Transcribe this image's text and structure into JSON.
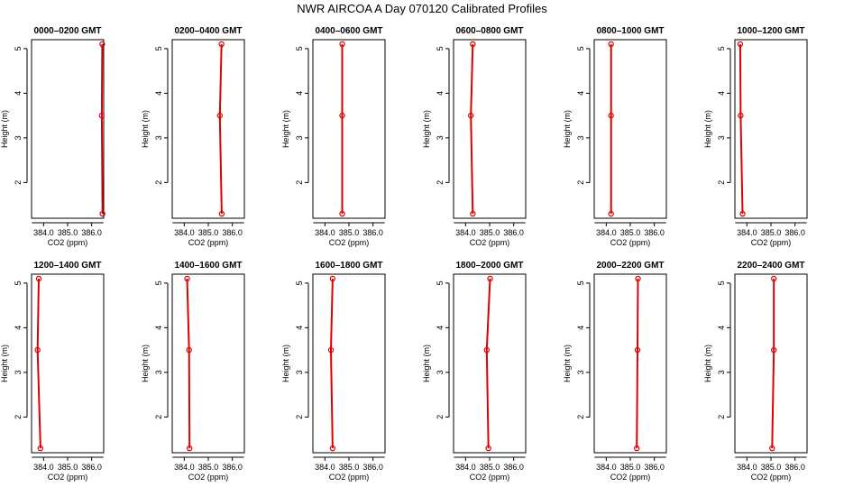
{
  "title": "NWR AIRCOA A  Day 070120  Calibrated Profiles",
  "colors": {
    "series": "#dd0000",
    "axis": "#000000"
  },
  "chart_data": [
    {
      "type": "line",
      "title": "0000–0200 GMT",
      "xlabel": "CO2 (ppm)",
      "ylabel": "Height (m)",
      "xlim": [
        383.5,
        386.5
      ],
      "ylim": [
        1.2,
        5.2
      ],
      "xticks": [
        "384.0",
        "385.0",
        "386.0"
      ],
      "yticks": [
        "2",
        "3",
        "4",
        "5"
      ],
      "grid": false,
      "series": [
        {
          "x": [
            386.44,
            386.42,
            386.45
          ],
          "y": [
            5.1,
            3.5,
            1.3
          ]
        }
      ]
    },
    {
      "type": "line",
      "title": "0200–0400 GMT",
      "xlabel": "CO2 (ppm)",
      "ylabel": "Height (m)",
      "xlim": [
        383.5,
        386.5
      ],
      "ylim": [
        1.2,
        5.2
      ],
      "xticks": [
        "384.0",
        "385.0",
        "386.0"
      ],
      "yticks": [
        "2",
        "3",
        "4",
        "5"
      ],
      "grid": false,
      "series": [
        {
          "x": [
            385.55,
            385.48,
            385.56
          ],
          "y": [
            5.1,
            3.5,
            1.3
          ]
        }
      ]
    },
    {
      "type": "line",
      "title": "0400–0600 GMT",
      "xlabel": "CO2 (ppm)",
      "ylabel": "Height (m)",
      "xlim": [
        383.5,
        386.5
      ],
      "ylim": [
        1.2,
        5.2
      ],
      "xticks": [
        "384.0",
        "385.0",
        "386.0"
      ],
      "yticks": [
        "2",
        "3",
        "4",
        "5"
      ],
      "grid": false,
      "series": [
        {
          "x": [
            384.72,
            384.72,
            384.72
          ],
          "y": [
            5.1,
            3.5,
            1.3
          ]
        }
      ]
    },
    {
      "type": "line",
      "title": "0600–0800 GMT",
      "xlabel": "CO2 (ppm)",
      "ylabel": "Height (m)",
      "xlim": [
        383.5,
        386.5
      ],
      "ylim": [
        1.2,
        5.2
      ],
      "xticks": [
        "384.0",
        "385.0",
        "386.0"
      ],
      "yticks": [
        "2",
        "3",
        "4",
        "5"
      ],
      "grid": false,
      "series": [
        {
          "x": [
            384.3,
            384.22,
            384.3
          ],
          "y": [
            5.1,
            3.5,
            1.3
          ]
        }
      ]
    },
    {
      "type": "line",
      "title": "0800–1000 GMT",
      "xlabel": "CO2 (ppm)",
      "ylabel": "Height (m)",
      "xlim": [
        383.5,
        386.5
      ],
      "ylim": [
        1.2,
        5.2
      ],
      "xticks": [
        "384.0",
        "385.0",
        "386.0"
      ],
      "yticks": [
        "2",
        "3",
        "4",
        "5"
      ],
      "grid": false,
      "series": [
        {
          "x": [
            384.2,
            384.2,
            384.2
          ],
          "y": [
            5.1,
            3.5,
            1.3
          ]
        }
      ]
    },
    {
      "type": "line",
      "title": "1000–1200 GMT",
      "xlabel": "CO2 (ppm)",
      "ylabel": "Height (m)",
      "xlim": [
        383.5,
        386.5
      ],
      "ylim": [
        1.2,
        5.2
      ],
      "xticks": [
        "384.0",
        "385.0",
        "386.0"
      ],
      "yticks": [
        "2",
        "3",
        "4",
        "5"
      ],
      "grid": false,
      "series": [
        {
          "x": [
            383.72,
            383.74,
            383.82
          ],
          "y": [
            5.1,
            3.5,
            1.3
          ]
        }
      ]
    },
    {
      "type": "line",
      "title": "1200–1400 GMT",
      "xlabel": "CO2 (ppm)",
      "ylabel": "Height (m)",
      "xlim": [
        383.5,
        386.5
      ],
      "ylim": [
        1.2,
        5.2
      ],
      "xticks": [
        "384.0",
        "385.0",
        "386.0"
      ],
      "yticks": [
        "2",
        "3",
        "4",
        "5"
      ],
      "grid": false,
      "series": [
        {
          "x": [
            383.8,
            383.75,
            383.87
          ],
          "y": [
            5.1,
            3.5,
            1.3
          ]
        }
      ]
    },
    {
      "type": "line",
      "title": "1400–1600 GMT",
      "xlabel": "CO2 (ppm)",
      "ylabel": "Height (m)",
      "xlim": [
        383.5,
        386.5
      ],
      "ylim": [
        1.2,
        5.2
      ],
      "xticks": [
        "384.0",
        "385.0",
        "386.0"
      ],
      "yticks": [
        "2",
        "3",
        "4",
        "5"
      ],
      "grid": false,
      "series": [
        {
          "x": [
            384.12,
            384.2,
            384.22
          ],
          "y": [
            5.1,
            3.5,
            1.3
          ]
        }
      ]
    },
    {
      "type": "line",
      "title": "1600–1800 GMT",
      "xlabel": "CO2 (ppm)",
      "ylabel": "Height (m)",
      "xlim": [
        383.5,
        386.5
      ],
      "ylim": [
        1.2,
        5.2
      ],
      "xticks": [
        "384.0",
        "385.0",
        "386.0"
      ],
      "yticks": [
        "2",
        "3",
        "4",
        "5"
      ],
      "grid": false,
      "series": [
        {
          "x": [
            384.32,
            384.25,
            384.32
          ],
          "y": [
            5.1,
            3.5,
            1.3
          ]
        }
      ]
    },
    {
      "type": "line",
      "title": "1800–2000 GMT",
      "xlabel": "CO2 (ppm)",
      "ylabel": "Height (m)",
      "xlim": [
        383.5,
        386.5
      ],
      "ylim": [
        1.2,
        5.2
      ],
      "xticks": [
        "384.0",
        "385.0",
        "386.0"
      ],
      "yticks": [
        "2",
        "3",
        "4",
        "5"
      ],
      "grid": false,
      "series": [
        {
          "x": [
            385.02,
            384.88,
            384.95
          ],
          "y": [
            5.1,
            3.5,
            1.3
          ]
        }
      ]
    },
    {
      "type": "line",
      "title": "2000–2200 GMT",
      "xlabel": "CO2 (ppm)",
      "ylabel": "Height (m)",
      "xlim": [
        383.5,
        386.5
      ],
      "ylim": [
        1.2,
        5.2
      ],
      "xticks": [
        "384.0",
        "385.0",
        "386.0"
      ],
      "yticks": [
        "2",
        "3",
        "4",
        "5"
      ],
      "grid": false,
      "series": [
        {
          "x": [
            385.32,
            385.3,
            385.27
          ],
          "y": [
            5.1,
            3.5,
            1.3
          ]
        }
      ]
    },
    {
      "type": "line",
      "title": "2200–2400 GMT",
      "xlabel": "CO2 (ppm)",
      "ylabel": "Height (m)",
      "xlim": [
        383.5,
        386.5
      ],
      "ylim": [
        1.2,
        5.2
      ],
      "xticks": [
        "384.0",
        "385.0",
        "386.0"
      ],
      "yticks": [
        "2",
        "3",
        "4",
        "5"
      ],
      "grid": false,
      "series": [
        {
          "x": [
            385.12,
            385.12,
            385.05
          ],
          "y": [
            5.1,
            3.5,
            1.3
          ]
        }
      ]
    }
  ]
}
